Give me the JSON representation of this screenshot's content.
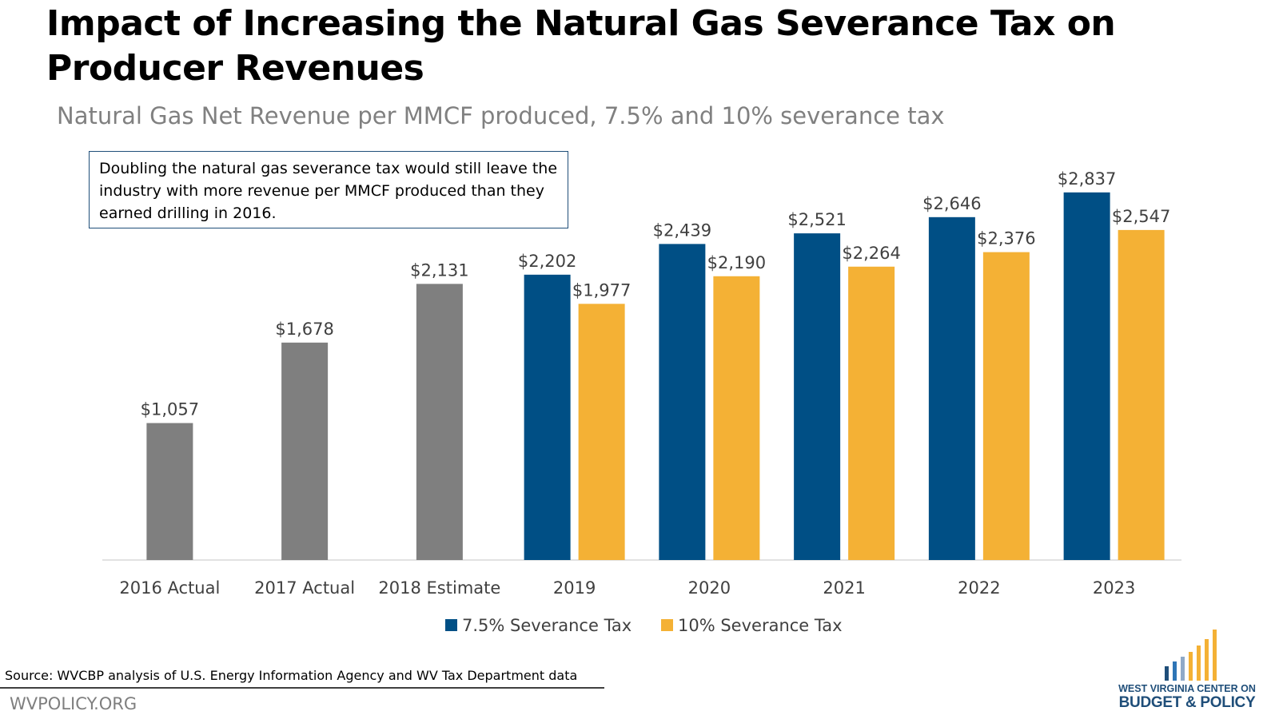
{
  "header": {
    "title": "Impact of Increasing the Natural Gas Severance Tax on Producer Revenues",
    "subtitle": "Natural Gas Net Revenue per MMCF produced, 7.5% and 10% severance tax"
  },
  "callout": {
    "text": "Doubling the natural gas severance tax would still leave the industry with more revenue per MMCF produced than they earned drilling in 2016."
  },
  "chart_data": {
    "type": "bar",
    "title": "Natural Gas Net Revenue per MMCF produced, 7.5% and 10% severance tax",
    "xlabel": "",
    "ylabel": "",
    "ylim": [
      0,
      3000
    ],
    "grid": false,
    "legend_position": "bottom-center",
    "categories": [
      "2016 Actual",
      "2017 Actual",
      "2018 Estimate",
      "2019",
      "2020",
      "2021",
      "2022",
      "2023"
    ],
    "series": [
      {
        "name": "Historical",
        "color": "#7f7f7f",
        "in_legend": false,
        "values": [
          1057,
          1678,
          2131,
          null,
          null,
          null,
          null,
          null
        ],
        "labels": [
          "$1,057",
          "$1,678",
          "$2,131",
          null,
          null,
          null,
          null,
          null
        ]
      },
      {
        "name": "7.5% Severance Tax",
        "color": "#004f85",
        "in_legend": true,
        "values": [
          null,
          null,
          null,
          2202,
          2439,
          2521,
          2646,
          2837
        ],
        "labels": [
          null,
          null,
          null,
          "$2,202",
          "$2,439",
          "$2,521",
          "$2,646",
          "$2,837"
        ]
      },
      {
        "name": "10% Severance Tax",
        "color": "#f4b135",
        "in_legend": true,
        "values": [
          null,
          null,
          null,
          1977,
          2190,
          2264,
          2376,
          2547
        ],
        "labels": [
          null,
          null,
          null,
          "$1,977",
          "$2,190",
          "$2,264",
          "$2,376",
          "$2,547"
        ]
      }
    ]
  },
  "footer": {
    "source": "Source: WVCBP analysis of U.S. Energy Information Agency and WV Tax Department data",
    "website": "WVPOLICY.ORG"
  },
  "logo": {
    "line1": "WEST VIRGINIA CENTER ON",
    "line2": "BUDGET & POLICY",
    "bar_colors": [
      "#1f4e79",
      "#2e75b6",
      "#8fa9c8",
      "#f4b135",
      "#f4b135",
      "#f4b135",
      "#f4b135"
    ]
  },
  "colors": {
    "axis": "#d9d9d9",
    "label_text": "#404040",
    "callout_border": "#1f4e79"
  }
}
